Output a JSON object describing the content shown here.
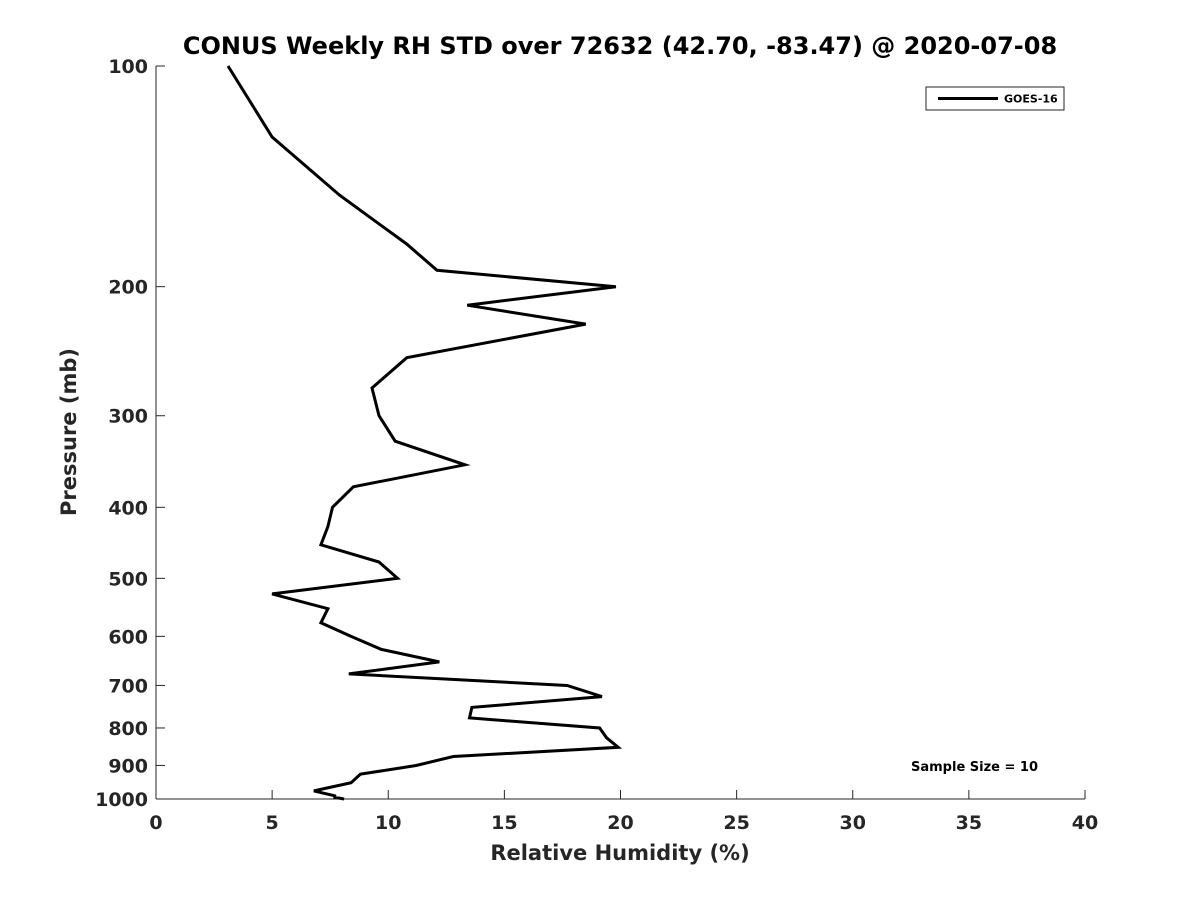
{
  "chart_data": {
    "type": "line",
    "title": "CONUS Weekly RH STD over 72632 (42.70, -83.47) @ 2020-07-08",
    "xlabel": "Relative Humidity (%)",
    "ylabel": "Pressure (mb)",
    "xlim": [
      0,
      40
    ],
    "ylim": [
      100,
      1000
    ],
    "y_scale": "log",
    "y_reversed": true,
    "x_ticks": [
      "0",
      "5",
      "10",
      "15",
      "20",
      "25",
      "30",
      "35",
      "40"
    ],
    "y_ticks": [
      "100",
      "200",
      "300",
      "400",
      "500",
      "600",
      "700",
      "800",
      "900",
      "1000"
    ],
    "grid": false,
    "legend": "top-right",
    "annotation": "Sample Size = 10",
    "series": [
      {
        "name": "GOES-16",
        "color": "#000000",
        "points": [
          [
            3.1,
            100
          ],
          [
            5.0,
            125
          ],
          [
            7.9,
            150
          ],
          [
            10.8,
            175
          ],
          [
            12.1,
            190
          ],
          [
            19.8,
            200
          ],
          [
            13.4,
            212
          ],
          [
            18.5,
            225
          ],
          [
            10.8,
            250
          ],
          [
            9.3,
            275
          ],
          [
            9.6,
            300
          ],
          [
            10.3,
            325
          ],
          [
            13.3,
            350
          ],
          [
            8.5,
            375
          ],
          [
            7.6,
            400
          ],
          [
            7.4,
            425
          ],
          [
            7.1,
            450
          ],
          [
            9.6,
            475
          ],
          [
            10.4,
            500
          ],
          [
            5.0,
            525
          ],
          [
            7.4,
            550
          ],
          [
            7.1,
            575
          ],
          [
            8.4,
            600
          ],
          [
            9.7,
            625
          ],
          [
            12.2,
            650
          ],
          [
            8.3,
            675
          ],
          [
            17.7,
            700
          ],
          [
            19.2,
            725
          ],
          [
            13.6,
            750
          ],
          [
            13.5,
            775
          ],
          [
            19.1,
            800
          ],
          [
            19.4,
            825
          ],
          [
            19.9,
            850
          ],
          [
            12.8,
            875
          ],
          [
            11.2,
            900
          ],
          [
            8.8,
            925
          ],
          [
            8.4,
            950
          ],
          [
            6.8,
            975
          ],
          [
            7.7,
            990
          ],
          [
            7.7,
            995
          ],
          [
            8.1,
            1000
          ]
        ]
      }
    ]
  }
}
